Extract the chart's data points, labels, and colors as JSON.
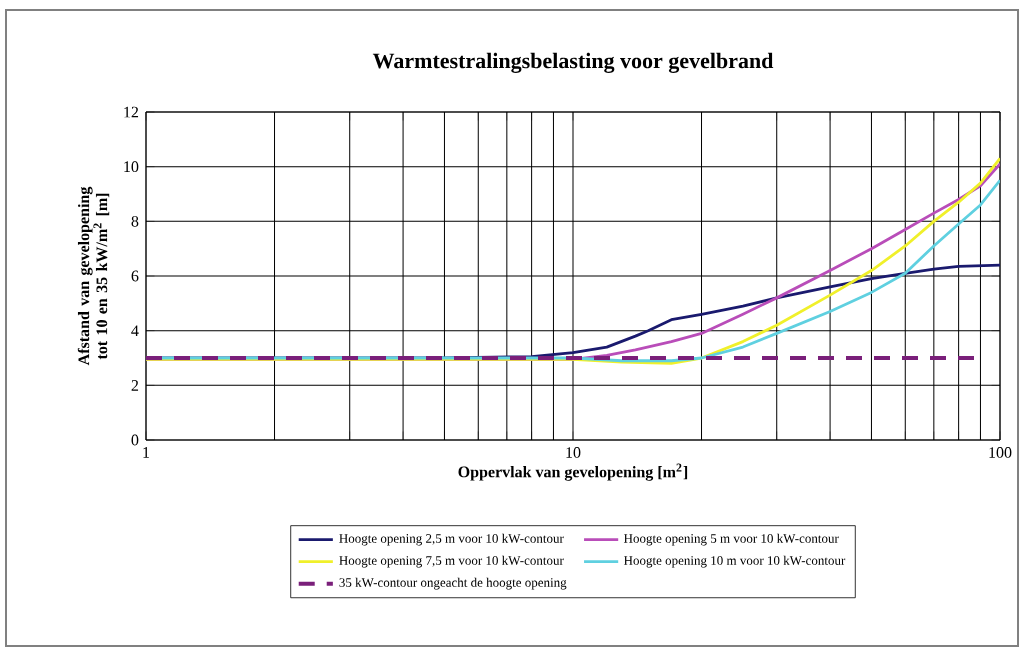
{
  "chart_data": {
    "type": "line",
    "title": "Warmtestralingsbelasting voor gevelbrand",
    "xlabel": "Oppervlak van gevelopening [m$^{2}$]",
    "ylabel": "Afstand van gevelopening tot 10 en 35 kW/m$^{2}$ [m]",
    "log": "x",
    "grid": true,
    "legend": "bottom",
    "marker": "none",
    "xlim": [
      1,
      100
    ],
    "ylim": [
      0,
      12
    ],
    "xticks": [
      1,
      {
        "value": 2,
        "label": null
      },
      {
        "value": 3,
        "label": null
      },
      {
        "value": 4,
        "label": null
      },
      {
        "value": 5,
        "label": null
      },
      {
        "value": 6,
        "label": null
      },
      {
        "value": 7,
        "label": null
      },
      {
        "value": 8,
        "label": null
      },
      {
        "value": 9,
        "label": null
      },
      10,
      {
        "value": 20,
        "label": null
      },
      {
        "value": 30,
        "label": null
      },
      {
        "value": 40,
        "label": null
      },
      {
        "value": 50,
        "label": null
      },
      {
        "value": 60,
        "label": null
      },
      {
        "value": 70,
        "label": null
      },
      {
        "value": 80,
        "label": null
      },
      {
        "value": 90,
        "label": null
      },
      100
    ],
    "yticks": [
      0,
      2,
      4,
      6,
      8,
      10,
      12
    ],
    "series": [
      {
        "name": "Hoogte opening 2,5 m voor 10 kW-contour",
        "color": "#1a1a6e",
        "x": [
          1,
          5,
          8,
          10,
          12,
          14,
          15,
          17,
          20,
          25,
          30,
          40,
          50,
          60,
          70,
          80,
          100
        ],
        "values": [
          3.0,
          3.0,
          3.05,
          3.2,
          3.4,
          3.8,
          4.0,
          4.4,
          4.6,
          4.9,
          5.2,
          5.6,
          5.9,
          6.1,
          6.25,
          6.35,
          6.4
        ]
      },
      {
        "name": "Hoogte opening 5 m voor 10 kW-contour",
        "color": "#b94db9",
        "x": [
          1,
          5,
          10,
          12,
          14,
          17,
          20,
          25,
          30,
          40,
          50,
          60,
          70,
          80,
          90,
          100
        ],
        "values": [
          2.95,
          2.95,
          2.95,
          3.1,
          3.3,
          3.6,
          3.9,
          4.6,
          5.2,
          6.2,
          7.0,
          7.7,
          8.3,
          8.8,
          9.3,
          10.1
        ]
      },
      {
        "name": "Hoogte opening 7,5 m voor 10 kW-contour",
        "color": "#f0f02a",
        "x": [
          1,
          5,
          10,
          13,
          17,
          20,
          25,
          30,
          40,
          50,
          60,
          70,
          80,
          90,
          100
        ],
        "values": [
          2.95,
          2.95,
          2.95,
          2.85,
          2.8,
          3.0,
          3.6,
          4.2,
          5.3,
          6.2,
          7.1,
          8.0,
          8.7,
          9.4,
          10.3
        ]
      },
      {
        "name": "Hoogte opening 10 m voor 10 kW-contour",
        "color": "#5fd0e0",
        "x": [
          1,
          5,
          10,
          13,
          17,
          20,
          25,
          30,
          40,
          50,
          60,
          70,
          80,
          90,
          100
        ],
        "values": [
          3.0,
          3.0,
          3.0,
          2.9,
          2.9,
          3.0,
          3.4,
          3.9,
          4.7,
          5.4,
          6.1,
          7.1,
          7.9,
          8.6,
          9.5
        ]
      },
      {
        "name": "35 kW-contour ongeacht de hoogte opening",
        "color": "#7a1f7a",
        "line_style": "dashed",
        "x": [
          1,
          90
        ],
        "values": [
          3.0,
          3.0
        ]
      }
    ]
  }
}
